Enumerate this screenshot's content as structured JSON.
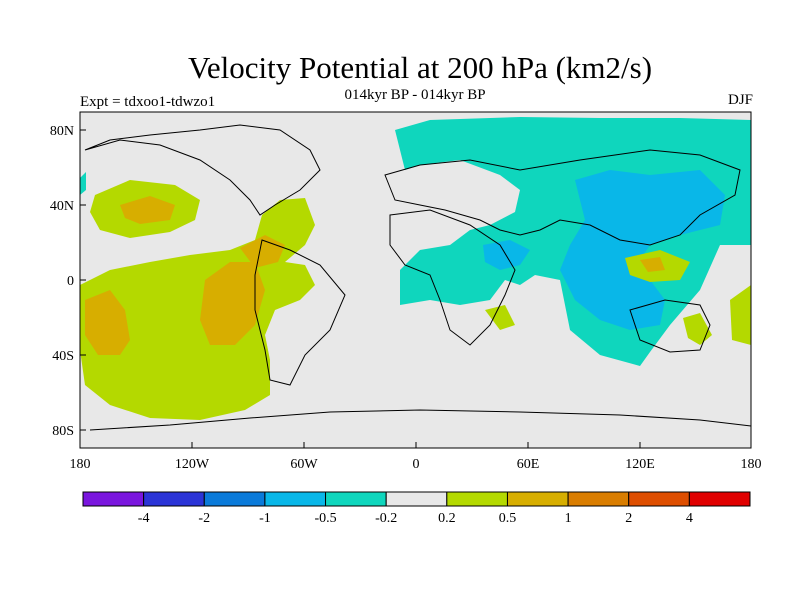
{
  "title": "Velocity Potential at 200 hPa (km2/s)",
  "subtitle": "014kyr BP - 014kyr BP",
  "left_label": "Expt = tdxoo1-tdwzo1",
  "right_label": "DJF",
  "axes": {
    "y_ticks": [
      "80N",
      "40N",
      "0",
      "40S",
      "80S"
    ],
    "x_ticks": [
      "180",
      "120W",
      "60W",
      "0",
      "60E",
      "120E",
      "180"
    ]
  },
  "colorbar": {
    "colors": [
      "#7a16de",
      "#2b34d6",
      "#0a7ad9",
      "#09b7e8",
      "#0fd6bd",
      "#e8e8e8",
      "#b4d900",
      "#d7ae00",
      "#d97d00",
      "#de4e00",
      "#e00000"
    ],
    "labels": [
      "-4",
      "-2",
      "-1",
      "-0.5",
      "-0.2",
      "0.2",
      "0.5",
      "1",
      "2",
      "4"
    ]
  },
  "regions": [
    {
      "name": "north-pacific-positive",
      "color": "#b4d900"
    },
    {
      "name": "americas-positive",
      "color": "#b4d900"
    },
    {
      "name": "east-asia-negative",
      "color": "#0fd6bd"
    },
    {
      "name": "maritime-negative",
      "color": "#09b7e8"
    }
  ]
}
